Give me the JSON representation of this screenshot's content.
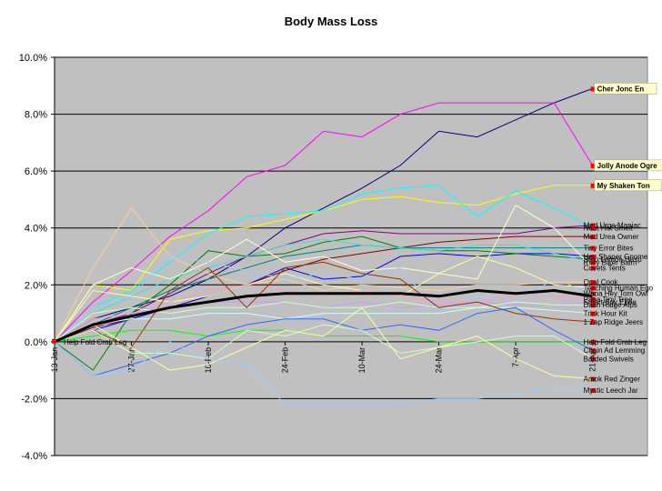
{
  "chart_data": {
    "type": "line",
    "title": "Body Mass Loss",
    "xlabel": "",
    "ylabel": "",
    "ylim": [
      -0.04,
      0.1
    ],
    "yticks": [
      "-4.0%",
      "-2.0%",
      "0.0%",
      "2.0%",
      "4.0%",
      "6.0%",
      "8.0%",
      "10.0%"
    ],
    "xlim": [
      "2011-01-13",
      "2011-05-01"
    ],
    "xticks": [
      "13-Jan",
      "27-Jan",
      "10-Feb",
      "24-Feb",
      "10-Mar",
      "24-Mar",
      "7-Apr",
      "21-Apr"
    ],
    "plot_background": "#c0c0c0",
    "grid": true,
    "x": [
      "2011-01-13",
      "2011-01-20",
      "2011-01-27",
      "2011-02-03",
      "2011-02-10",
      "2011-02-17",
      "2011-02-24",
      "2011-03-03",
      "2011-03-10",
      "2011-03-17",
      "2011-03-24",
      "2011-03-31",
      "2011-04-07",
      "2011-04-14",
      "2011-04-21"
    ],
    "average": {
      "color": "#000000",
      "values": [
        0.0,
        0.006,
        0.009,
        0.012,
        0.014,
        0.016,
        0.017,
        0.017,
        0.017,
        0.017,
        0.016,
        0.018,
        0.017,
        0.018,
        0.016
      ]
    },
    "series": [
      {
        "name": "Cher Jonc En",
        "color": "#000080",
        "values": [
          0.0,
          0.008,
          0.012,
          0.016,
          0.022,
          0.03,
          0.04,
          0.047,
          0.054,
          0.062,
          0.074,
          0.072,
          0.078,
          0.084,
          0.089
        ]
      },
      {
        "name": "Jolly Anode Ogre",
        "color": "#ff00ff",
        "values": [
          0.0,
          0.014,
          0.025,
          0.037,
          0.046,
          0.058,
          0.062,
          0.074,
          0.072,
          0.08,
          0.084,
          0.084,
          0.084,
          0.084,
          0.062
        ]
      },
      {
        "name": "My Shaken Ton",
        "color": "#ffff00",
        "values": [
          0.0,
          0.02,
          0.018,
          0.036,
          0.039,
          0.04,
          0.043,
          0.046,
          0.05,
          0.051,
          0.049,
          0.048,
          0.052,
          0.055,
          0.055
        ]
      },
      {
        "name": "Mad Urge Maniac",
        "color": "#800080",
        "values": [
          0.0,
          0.006,
          0.01,
          0.017,
          0.024,
          0.03,
          0.034,
          0.038,
          0.039,
          0.038,
          0.038,
          0.038,
          0.038,
          0.04,
          0.041
        ]
      },
      {
        "name": "Neat Hot Smelt",
        "color": "#00ffff",
        "values": [
          0.0,
          0.012,
          0.018,
          0.028,
          0.038,
          0.044,
          0.045,
          0.046,
          0.052,
          0.054,
          0.055,
          0.044,
          0.053,
          0.047,
          0.04
        ]
      },
      {
        "name": "Mad Urea Owner",
        "color": "#800000",
        "values": [
          0.0,
          0.005,
          0.008,
          0.012,
          0.016,
          0.02,
          0.025,
          0.029,
          0.031,
          0.033,
          0.035,
          0.036,
          0.037,
          0.037,
          0.037
        ]
      },
      {
        "name": "Tiny Error Bites",
        "color": "#008080",
        "values": [
          0.0,
          0.006,
          0.012,
          0.018,
          0.022,
          0.026,
          0.03,
          0.032,
          0.034,
          0.033,
          0.033,
          0.033,
          0.033,
          0.033,
          0.033
        ]
      },
      {
        "name": "Hey Shaper Gnome",
        "color": "#0000ff",
        "values": [
          0.0,
          0.004,
          0.008,
          0.012,
          0.016,
          0.02,
          0.026,
          0.022,
          0.023,
          0.03,
          0.031,
          0.03,
          0.031,
          0.031,
          0.03
        ]
      },
      {
        "name": "Stop Lemon Hasp",
        "color": "#008000",
        "values": [
          0.0,
          -0.01,
          0.01,
          0.02,
          0.032,
          0.03,
          0.031,
          0.035,
          0.037,
          0.033,
          0.032,
          0.032,
          0.031,
          0.03,
          0.029
        ]
      },
      {
        "name": "Riley Biker Balm",
        "color": "#40e0d0",
        "values": [
          0.0,
          0.01,
          0.016,
          0.022,
          0.026,
          0.03,
          0.034,
          0.036,
          0.034,
          0.033,
          0.032,
          0.034,
          0.034,
          0.031,
          0.028
        ]
      },
      {
        "name": "Covets Tents",
        "color": "#ffffcc",
        "values": [
          0.0,
          0.02,
          0.026,
          0.022,
          0.028,
          0.036,
          0.028,
          0.03,
          0.025,
          0.026,
          0.024,
          0.022,
          0.048,
          0.04,
          0.026
        ]
      },
      {
        "name": "Opal Cook",
        "color": "#ffcc99",
        "values": [
          0.0,
          0.026,
          0.047,
          0.03,
          0.024,
          0.02,
          0.022,
          0.018,
          0.02,
          0.019,
          0.018,
          0.02,
          0.02,
          0.021,
          0.021
        ]
      },
      {
        "name": "Teaching Human Ego",
        "color": "#ffff99",
        "values": [
          0.0,
          0.018,
          0.016,
          0.014,
          0.016,
          0.02,
          0.024,
          0.02,
          0.018,
          0.016,
          0.024,
          0.03,
          0.026,
          0.02,
          0.019
        ]
      },
      {
        "name": "Whoa Hey Torn Owl",
        "color": "#99ccff",
        "values": [
          0.0,
          0.012,
          0.016,
          0.03,
          0.028,
          0.025,
          0.022,
          0.024,
          0.022,
          0.026,
          0.01,
          0.016,
          0.014,
          0.022,
          0.017
        ]
      },
      {
        "name": "Papa Tiny Tree",
        "color": "#ff99cc",
        "values": [
          0.0,
          0.008,
          0.01,
          0.014,
          0.018,
          0.02,
          0.018,
          0.016,
          0.018,
          0.016,
          0.014,
          0.014,
          0.016,
          0.016,
          0.015
        ]
      },
      {
        "name": "Smart Spy Epee",
        "color": "#cc99ff",
        "values": [
          0.0,
          0.004,
          0.01,
          0.012,
          0.014,
          0.014,
          0.014,
          0.012,
          0.014,
          0.012,
          0.013,
          0.014,
          0.013,
          0.013,
          0.014
        ]
      },
      {
        "name": "Dash Ridge Alps",
        "color": "#ccffcc",
        "values": [
          0.0,
          0.01,
          0.012,
          0.01,
          0.012,
          0.012,
          0.014,
          0.012,
          0.012,
          0.014,
          0.012,
          0.012,
          0.014,
          0.013,
          0.013
        ]
      },
      {
        "name": "Trick Hour Kit",
        "color": "#ccffff",
        "values": [
          0.0,
          0.006,
          0.008,
          0.008,
          0.01,
          0.01,
          0.008,
          0.01,
          0.01,
          0.01,
          0.01,
          0.012,
          0.012,
          0.011,
          0.01
        ]
      },
      {
        "name": "1 Zap Ridge Jeers",
        "color": "#993300",
        "values": [
          0.0,
          0.004,
          -0.002,
          0.018,
          0.026,
          0.012,
          0.026,
          0.028,
          0.024,
          0.022,
          0.012,
          0.014,
          0.01,
          0.008,
          0.007
        ]
      },
      {
        "name": "Help Fold Crab Leg",
        "color": "#00ff00",
        "values": [
          0.0,
          0.002,
          0.004,
          0.004,
          0.002,
          0.004,
          0.004,
          0.002,
          0.002,
          0.002,
          0.0,
          0.0,
          0.0,
          0.0,
          0.0
        ]
      },
      {
        "name": "Chain Ad Lemming",
        "color": "#3366ff",
        "values": [
          0.0,
          -0.012,
          -0.008,
          -0.004,
          0.002,
          0.006,
          0.008,
          0.008,
          0.004,
          0.006,
          0.004,
          0.01,
          0.012,
          0.004,
          -0.003
        ]
      },
      {
        "name": "Barded Swivels",
        "color": "#ccffcc",
        "values": [
          0.0,
          0.004,
          -0.004,
          -0.004,
          -0.006,
          0.004,
          0.002,
          0.006,
          0.004,
          -0.004,
          -0.002,
          0.0,
          0.002,
          0.002,
          -0.006
        ]
      },
      {
        "name": "Amok Red Zinger",
        "color": "#ffff99",
        "values": [
          0.0,
          0.006,
          -0.002,
          -0.01,
          -0.008,
          -0.002,
          0.004,
          0.002,
          0.012,
          -0.006,
          -0.002,
          0.002,
          -0.006,
          -0.012,
          -0.013
        ]
      },
      {
        "name": "Mystic Leech Jar",
        "color": "#99ccff",
        "values": [
          0.0,
          -0.012,
          -0.01,
          0.0,
          -0.006,
          -0.008,
          -0.022,
          -0.022,
          -0.022,
          -0.022,
          -0.02,
          -0.02,
          -0.018,
          -0.017,
          -0.017
        ]
      }
    ],
    "callouts": [
      "Cher Jonc En",
      "Jolly Anode Ogre",
      "My Shaken Ton"
    ],
    "start_label": "Help Fold Crab Leg"
  }
}
